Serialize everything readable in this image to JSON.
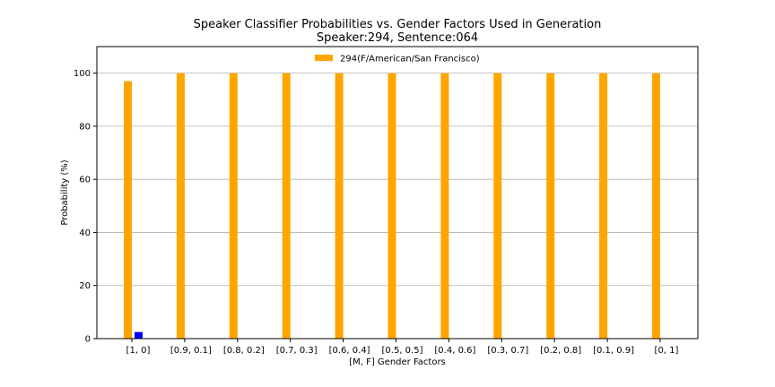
{
  "chart_data": {
    "type": "bar",
    "title": "Speaker Classifier Probabilities vs. Gender Factors Used in Generation",
    "subtitle": "Speaker:294, Sentence:064",
    "xlabel": "[M, F] Gender Factors",
    "ylabel": "Probability (%)",
    "ylim": [
      0,
      110
    ],
    "yticks": [
      0,
      20,
      40,
      60,
      80,
      100
    ],
    "grid": "horizontal",
    "legend_position": "top-center",
    "categories": [
      "[1, 0]",
      "[0.9, 0.1]",
      "[0.8, 0.2]",
      "[0.7, 0.3]",
      "[0.6, 0.4]",
      "[0.5, 0.5]",
      "[0.4, 0.6]",
      "[0.3, 0.7]",
      "[0.2, 0.8]",
      "[0.1, 0.9]",
      "[0, 1]"
    ],
    "series": [
      {
        "name": "294(F/American/San Francisco)",
        "color": "#ffa500",
        "values": [
          97,
          100,
          100,
          100,
          100,
          100,
          100,
          100,
          100,
          100,
          100
        ]
      },
      {
        "color": "#0000ff",
        "values": [
          2.5,
          0,
          0,
          0,
          0,
          0,
          0,
          0,
          0,
          0,
          0
        ]
      }
    ]
  }
}
